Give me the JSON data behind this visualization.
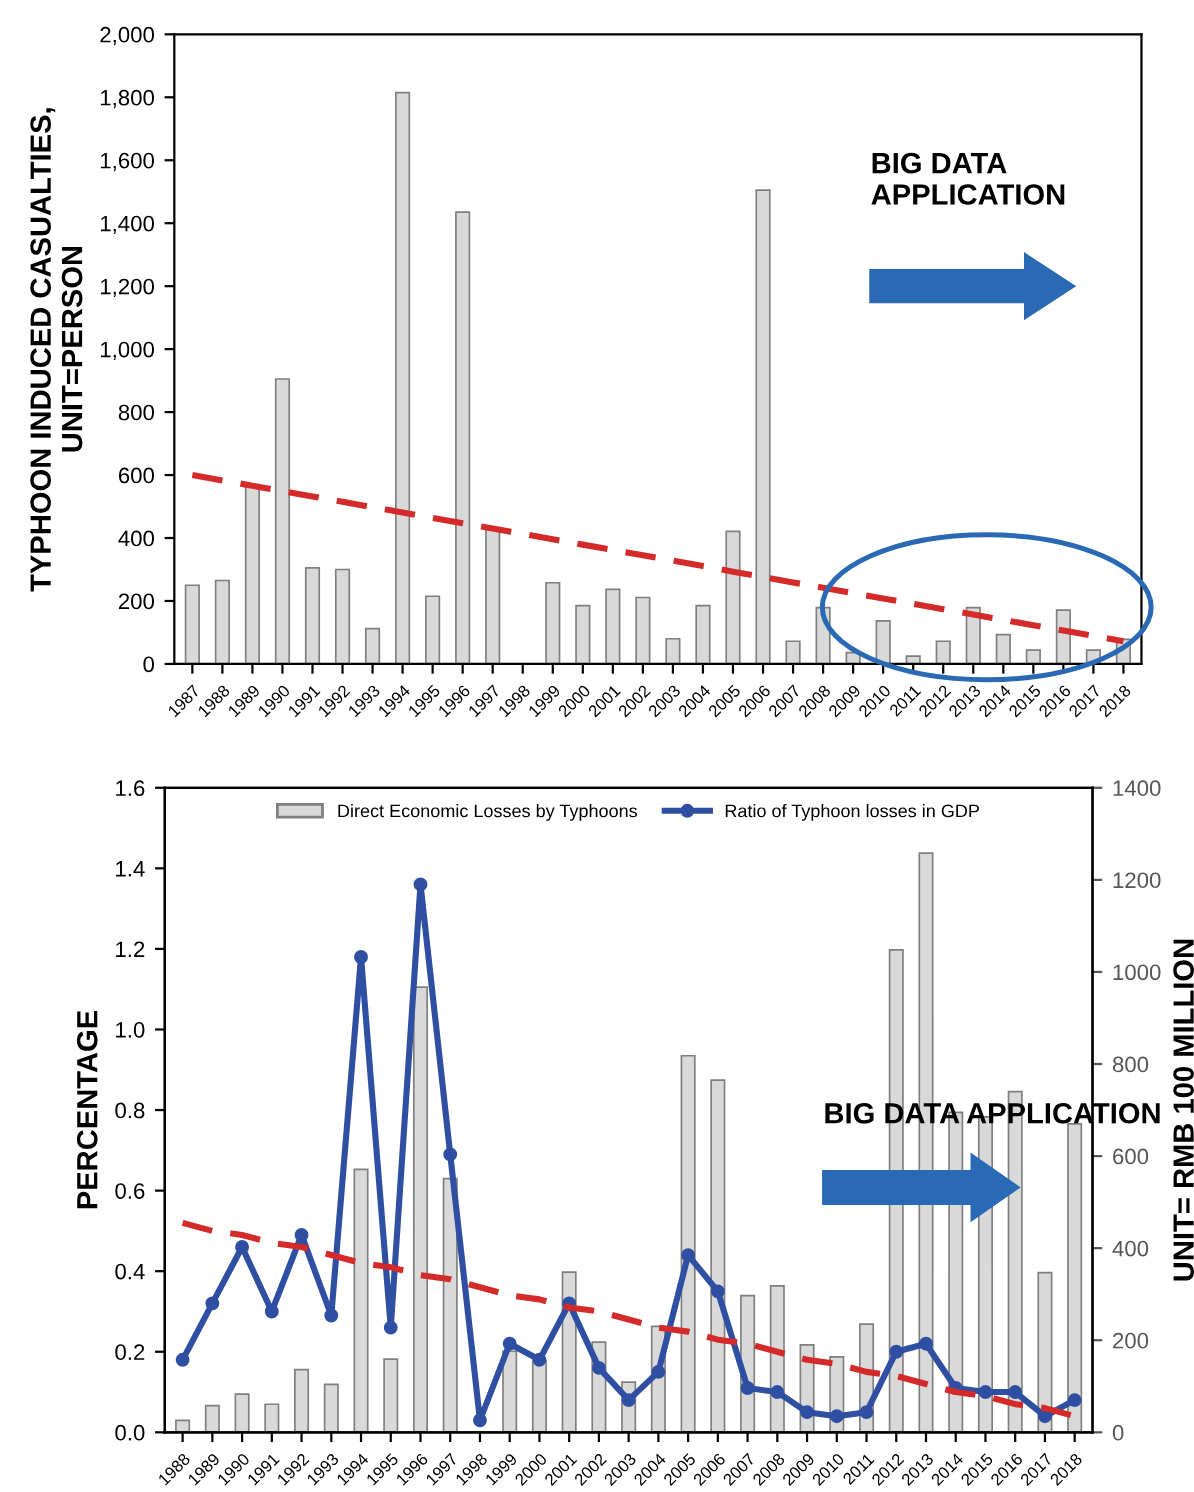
{
  "chart_data": [
    {
      "type": "bar",
      "ylabel": "TYPHOON INDUCED CASUALTIES,\nUNIT=PERSON",
      "categories": [
        "1987",
        "1988",
        "1989",
        "1990",
        "1991",
        "1992",
        "1993",
        "1994",
        "1995",
        "1996",
        "1997",
        "1998",
        "1999",
        "2000",
        "2001",
        "2002",
        "2003",
        "2004",
        "2005",
        "2006",
        "2007",
        "2008",
        "2009",
        "2010",
        "2011",
        "2012",
        "2013",
        "2014",
        "2015",
        "2016",
        "2017",
        "2018"
      ],
      "series": [
        {
          "color": "#d9d9d9",
          "values": [
            250,
            265,
            570,
            905,
            305,
            300,
            112,
            1815,
            215,
            1435,
            430,
            null,
            258,
            185,
            237,
            211,
            80,
            185,
            421,
            1505,
            72,
            179,
            36,
            137,
            25,
            72,
            179,
            93,
            44,
            171,
            44,
            78
          ]
        },
        {
          "type": "line",
          "color": "#d42a2a",
          "line_style": "dashed",
          "values": [
            600,
            583,
            566,
            549,
            532,
            515,
            498,
            481,
            464,
            447,
            430,
            413,
            396,
            379,
            362,
            345,
            328,
            311,
            293,
            276,
            259,
            242,
            225,
            208,
            191,
            174,
            157,
            140,
            123,
            106,
            89,
            72
          ]
        }
      ],
      "ylim": [
        0,
        2000
      ],
      "yticks": [
        {
          "value": 0,
          "label": "0"
        },
        {
          "value": 200,
          "label": "200"
        },
        {
          "value": 400,
          "label": "400"
        },
        {
          "value": 600,
          "label": "600"
        },
        {
          "value": 800,
          "label": "800"
        },
        {
          "value": 1000,
          "label": "1,000"
        },
        {
          "value": 1200,
          "label": "1,200"
        },
        {
          "value": 1400,
          "label": "1,400"
        },
        {
          "value": 1600,
          "label": "1,600"
        },
        {
          "value": 1800,
          "label": "1,800"
        },
        {
          "value": 2000,
          "label": "2,000"
        }
      ],
      "grid": false,
      "legend": false,
      "annotations": [
        "BIG DATA APPLICATION"
      ]
    },
    {
      "type": "bar",
      "ylabel": "PERCENTAGE",
      "y2label": "UNIT= RMB 100 MILLION",
      "categories": [
        "1988",
        "1989",
        "1990",
        "1991",
        "1992",
        "1993",
        "1994",
        "1995",
        "1996",
        "1997",
        "1998",
        "1999",
        "2000",
        "2001",
        "2002",
        "2003",
        "2004",
        "2005",
        "2006",
        "2007",
        "2008",
        "2009",
        "2010",
        "2011",
        "2012",
        "2013",
        "2014",
        "2015",
        "2016",
        "2017",
        "2018"
      ],
      "series": [
        {
          "axis": "y2",
          "name": "Direct Economic Losses by Typhoons",
          "color": "#d9d9d9",
          "values": [
            26,
            58,
            83,
            61,
            136,
            104,
            571,
            159,
            967,
            551,
            null,
            176,
            155,
            348,
            196,
            109,
            230,
            818,
            765,
            297,
            318,
            190,
            164,
            235,
            1048,
            1258,
            695,
            685,
            740,
            347,
            670
          ]
        },
        {
          "type": "line",
          "axis": "y",
          "name": "Ratio of Typhoon losses in GDP",
          "color": "#2f4fa3",
          "marker": "circle",
          "values": [
            0.18,
            0.32,
            0.46,
            0.3,
            0.49,
            0.29,
            1.18,
            0.26,
            1.36,
            0.69,
            0.03,
            0.22,
            0.18,
            0.32,
            0.16,
            0.08,
            0.15,
            0.44,
            0.35,
            0.11,
            0.1,
            0.05,
            0.04,
            0.05,
            0.2,
            0.22,
            0.11,
            0.1,
            0.1,
            0.04,
            0.08
          ]
        },
        {
          "type": "line",
          "axis": "y",
          "color": "#d42a2a",
          "line_style": "dashed",
          "values": [
            0.52,
            0.5,
            0.49,
            0.47,
            0.46,
            0.44,
            0.42,
            0.41,
            0.39,
            0.38,
            0.36,
            0.34,
            0.33,
            0.31,
            0.3,
            0.28,
            0.26,
            0.25,
            0.23,
            0.22,
            0.2,
            0.18,
            0.17,
            0.15,
            0.14,
            0.12,
            0.1,
            0.09,
            0.07,
            0.06,
            0.04
          ]
        }
      ],
      "ylim": [
        0,
        1.6
      ],
      "yticks": [
        {
          "value": 0,
          "label": "0.0"
        },
        {
          "value": 0.2,
          "label": "0.2"
        },
        {
          "value": 0.4,
          "label": "0.4"
        },
        {
          "value": 0.6,
          "label": "0.6"
        },
        {
          "value": 0.8,
          "label": "0.8"
        },
        {
          "value": 1.0,
          "label": "1.0"
        },
        {
          "value": 1.2,
          "label": "1.2"
        },
        {
          "value": 1.4,
          "label": "1.4"
        },
        {
          "value": 1.6,
          "label": "1.6"
        }
      ],
      "y2lim": [
        0,
        1400
      ],
      "y2ticks": [
        0,
        200,
        400,
        600,
        800,
        1000,
        1200,
        1400
      ],
      "grid": false,
      "legend": "top",
      "annotations": [
        "BIG DATA APPLICATION"
      ]
    }
  ]
}
